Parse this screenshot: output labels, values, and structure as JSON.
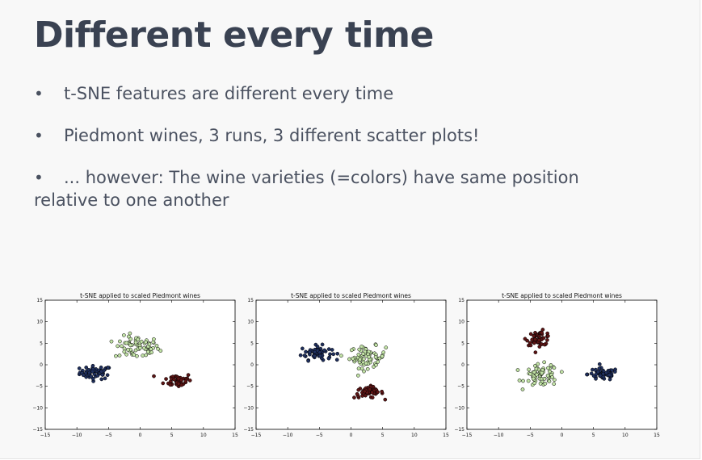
{
  "slide": {
    "title": "Different every time",
    "bullets": [
      "t-SNE features are different every time",
      "Piedmont wines, 3 runs, 3 different scatter plots!",
      "... however: The wine varieties (=colors) have same position",
      "relative to one another"
    ]
  },
  "colors": {
    "series_a": "#1f2f5e",
    "series_b": "#c2e3a6",
    "series_c": "#5c1414",
    "title_color": "#3a4252",
    "text_color": "#4a5160"
  },
  "chart_data": [
    {
      "type": "scatter",
      "title": "t-SNE applied to scaled Piedmont wines",
      "xlim": [
        -15,
        15
      ],
      "ylim": [
        -15,
        15
      ],
      "xticks": [
        -15,
        -10,
        -5,
        0,
        5,
        10,
        15
      ],
      "yticks": [
        15,
        10,
        5,
        0,
        -5,
        -10,
        -15
      ],
      "grid": false,
      "series": [
        {
          "color": "#1f2f5e",
          "cluster": {
            "center": [
              -7,
              -1.8
            ],
            "spread": [
              2.3,
              1.4
            ],
            "n": 58
          }
        },
        {
          "color": "#c2e3a6",
          "cluster": {
            "center": [
              -0.5,
              4.0
            ],
            "spread": [
              3.2,
              2.4
            ],
            "n": 70
          }
        },
        {
          "color": "#5c1414",
          "cluster": {
            "center": [
              6.0,
              -3.6
            ],
            "spread": [
              2.0,
              1.5
            ],
            "n": 48
          }
        }
      ]
    },
    {
      "type": "scatter",
      "title": "t-SNE applied to scaled Piedmont wines",
      "xlim": [
        -15,
        15
      ],
      "ylim": [
        -15,
        15
      ],
      "xticks": [
        -15,
        -10,
        -5,
        0,
        5,
        10,
        15
      ],
      "yticks": [
        15,
        10,
        5,
        0,
        -5,
        -10,
        -15
      ],
      "grid": false,
      "series": [
        {
          "color": "#1f2f5e",
          "cluster": {
            "center": [
              -5.5,
              2.8
            ],
            "spread": [
              2.2,
              1.5
            ],
            "n": 58
          }
        },
        {
          "color": "#c2e3a6",
          "cluster": {
            "center": [
              2.6,
              1.8
            ],
            "spread": [
              2.6,
              2.3
            ],
            "n": 70
          }
        },
        {
          "color": "#5c1414",
          "cluster": {
            "center": [
              2.8,
              -6.4
            ],
            "spread": [
              2.1,
              1.2
            ],
            "n": 48
          }
        }
      ]
    },
    {
      "type": "scatter",
      "title": "t-SNE applied to scaled Piedmont wines",
      "xlim": [
        -15,
        15
      ],
      "ylim": [
        -15,
        15
      ],
      "xticks": [
        -15,
        -10,
        -5,
        0,
        5,
        10,
        15
      ],
      "yticks": [
        15,
        10,
        5,
        0,
        -5,
        -10,
        -15
      ],
      "grid": false,
      "series": [
        {
          "color": "#1f2f5e",
          "cluster": {
            "center": [
              6.5,
              -2.2
            ],
            "spread": [
              2.2,
              1.3
            ],
            "n": 58
          }
        },
        {
          "color": "#c2e3a6",
          "cluster": {
            "center": [
              -3.2,
              -2.5
            ],
            "spread": [
              2.4,
              2.3
            ],
            "n": 70
          }
        },
        {
          "color": "#5c1414",
          "cluster": {
            "center": [
              -3.6,
              6.2
            ],
            "spread": [
              1.8,
              1.5
            ],
            "n": 48
          }
        }
      ]
    }
  ]
}
